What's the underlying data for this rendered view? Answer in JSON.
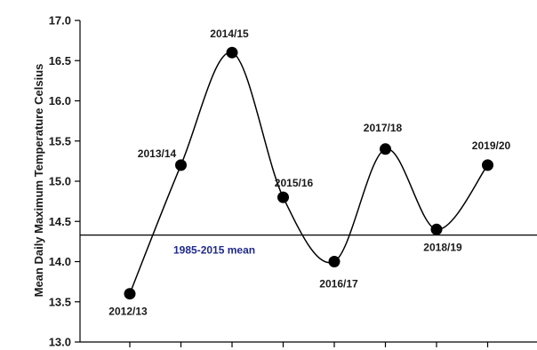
{
  "chart_data": {
    "type": "line",
    "title": "",
    "xlabel": "",
    "ylabel": "Mean Daily Maximum Temperature Celsius",
    "ylim": [
      13.0,
      17.0
    ],
    "yticks": [
      "13.0",
      "13.5",
      "14.0",
      "14.5",
      "15.0",
      "15.5",
      "16.0",
      "16.5",
      "17.0"
    ],
    "categories": [
      "2012/13",
      "2013/14",
      "2014/15",
      "2015/16",
      "2016/17",
      "2017/18",
      "2018/19",
      "2019/20"
    ],
    "series": [
      {
        "values": [
          13.6,
          15.2,
          16.6,
          14.8,
          14.0,
          15.4,
          14.4,
          15.2
        ]
      }
    ],
    "reference_line": {
      "label": "1985-2015 mean",
      "value": 14.33
    },
    "grid": false,
    "smooth": true,
    "colors": {
      "line": "#000000",
      "marker": "#000000",
      "mean_label": "#1f2a8a"
    }
  }
}
